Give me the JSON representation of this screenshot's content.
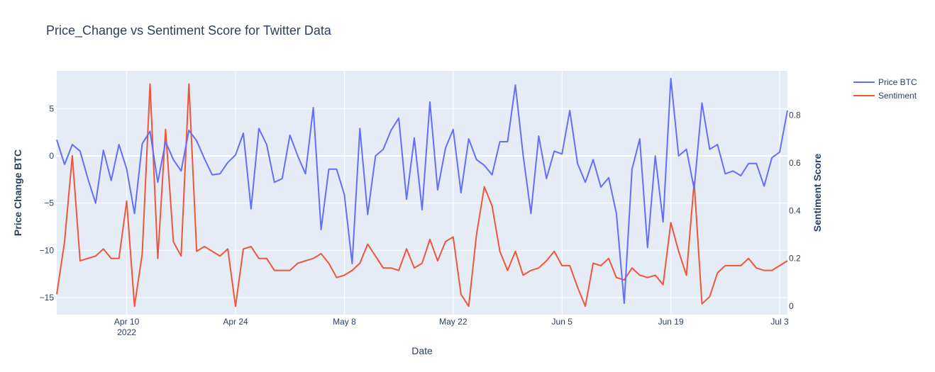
{
  "chart_data": {
    "type": "line",
    "title": "Price_Change vs Sentiment Score for Twitter Data",
    "xlabel": "Date",
    "ylabel": "Price Change BTC",
    "y2label": "Sentiment Score",
    "xlim": [
      "2022-04-01",
      "2022-07-04"
    ],
    "ylim": [
      -16.8,
      9.0
    ],
    "y2lim": [
      -0.035,
      0.985
    ],
    "x_ticks": [
      "Apr 10",
      "Apr 24",
      "May 8",
      "May 22",
      "Jun 5",
      "Jun 19",
      "Jul 3"
    ],
    "x_tick_sublabel": "2022",
    "y_ticks": [
      "5",
      "0",
      "−5",
      "−10",
      "−15"
    ],
    "y2_ticks": [
      "0.8",
      "0.6",
      "0.4",
      "0.2",
      "0"
    ],
    "grid": true,
    "legend_position": "top-right",
    "x": [
      "2022-04-01",
      "2022-04-02",
      "2022-04-03",
      "2022-04-04",
      "2022-04-05",
      "2022-04-06",
      "2022-04-07",
      "2022-04-08",
      "2022-04-09",
      "2022-04-10",
      "2022-04-11",
      "2022-04-12",
      "2022-04-13",
      "2022-04-14",
      "2022-04-15",
      "2022-04-16",
      "2022-04-17",
      "2022-04-18",
      "2022-04-19",
      "2022-04-20",
      "2022-04-21",
      "2022-04-22",
      "2022-04-23",
      "2022-04-24",
      "2022-04-25",
      "2022-04-26",
      "2022-04-27",
      "2022-04-28",
      "2022-04-29",
      "2022-04-30",
      "2022-05-01",
      "2022-05-02",
      "2022-05-03",
      "2022-05-04",
      "2022-05-05",
      "2022-05-06",
      "2022-05-07",
      "2022-05-08",
      "2022-05-09",
      "2022-05-10",
      "2022-05-11",
      "2022-05-12",
      "2022-05-13",
      "2022-05-14",
      "2022-05-15",
      "2022-05-16",
      "2022-05-17",
      "2022-05-18",
      "2022-05-19",
      "2022-05-20",
      "2022-05-21",
      "2022-05-22",
      "2022-05-23",
      "2022-05-24",
      "2022-05-25",
      "2022-05-26",
      "2022-05-27",
      "2022-05-28",
      "2022-05-29",
      "2022-05-30",
      "2022-05-31",
      "2022-06-01",
      "2022-06-02",
      "2022-06-03",
      "2022-06-04",
      "2022-06-05",
      "2022-06-06",
      "2022-06-07",
      "2022-06-08",
      "2022-06-09",
      "2022-06-10",
      "2022-06-11",
      "2022-06-12",
      "2022-06-13",
      "2022-06-14",
      "2022-06-15",
      "2022-06-16",
      "2022-06-17",
      "2022-06-18",
      "2022-06-19",
      "2022-06-20",
      "2022-06-21",
      "2022-06-22",
      "2022-06-23",
      "2022-06-24",
      "2022-06-25",
      "2022-06-26",
      "2022-06-27",
      "2022-06-28",
      "2022-06-29",
      "2022-06-30",
      "2022-07-01",
      "2022-07-02",
      "2022-07-03",
      "2022-07-04"
    ],
    "series": [
      {
        "name": "Price BTC",
        "axis": "y",
        "color": "#636efa",
        "values": [
          1.7,
          -0.9,
          1.2,
          0.5,
          -2.4,
          -5.0,
          0.6,
          -2.6,
          1.2,
          -1.4,
          -6.1,
          1.3,
          2.6,
          -2.8,
          1.5,
          -0.4,
          -1.6,
          2.7,
          1.6,
          -0.3,
          -2.0,
          -1.9,
          -0.7,
          0.1,
          2.4,
          -5.6,
          2.9,
          1.2,
          -2.8,
          -2.4,
          2.2,
          0.0,
          -1.9,
          5.1,
          -7.8,
          -1.4,
          -1.4,
          -4.1,
          -11.4,
          2.9,
          -6.2,
          0.0,
          0.7,
          2.7,
          4.0,
          -4.6,
          1.9,
          -5.7,
          5.7,
          -3.6,
          0.8,
          2.8,
          -3.9,
          1.8,
          -0.4,
          -1.0,
          -2.0,
          1.5,
          1.5,
          7.5,
          0.1,
          -6.1,
          2.1,
          -2.4,
          0.5,
          0.2,
          4.8,
          -0.8,
          -2.8,
          -0.4,
          -3.3,
          -2.3,
          -6.1,
          -15.6,
          -1.4,
          1.8,
          -9.7,
          0.0,
          -7.0,
          8.2,
          0.0,
          0.7,
          -3.5,
          5.6,
          0.7,
          1.2,
          -1.9,
          -1.6,
          -2.1,
          -0.8,
          -0.8,
          -3.2,
          -0.2,
          0.4,
          4.8
        ]
      },
      {
        "name": "Sentiment",
        "axis": "y2",
        "color": "#ef553b",
        "values": [
          0.05,
          0.27,
          0.63,
          0.19,
          0.2,
          0.21,
          0.24,
          0.2,
          0.2,
          0.44,
          0.0,
          0.22,
          0.93,
          0.2,
          0.74,
          0.27,
          0.21,
          0.93,
          0.23,
          0.25,
          0.23,
          0.21,
          0.24,
          0.0,
          0.24,
          0.25,
          0.2,
          0.2,
          0.15,
          0.15,
          0.15,
          0.18,
          0.19,
          0.2,
          0.22,
          0.18,
          0.12,
          0.13,
          0.15,
          0.18,
          0.26,
          0.21,
          0.16,
          0.16,
          0.15,
          0.24,
          0.16,
          0.18,
          0.28,
          0.19,
          0.27,
          0.29,
          0.05,
          0.0,
          0.3,
          0.5,
          0.42,
          0.23,
          0.15,
          0.23,
          0.13,
          0.15,
          0.16,
          0.19,
          0.23,
          0.17,
          0.17,
          0.08,
          0.0,
          0.18,
          0.17,
          0.2,
          0.12,
          0.11,
          0.16,
          0.13,
          0.12,
          0.13,
          0.09,
          0.35,
          0.23,
          0.13,
          0.52,
          0.01,
          0.04,
          0.14,
          0.17,
          0.17,
          0.17,
          0.2,
          0.16,
          0.15,
          0.15,
          0.17,
          0.19
        ]
      }
    ]
  }
}
